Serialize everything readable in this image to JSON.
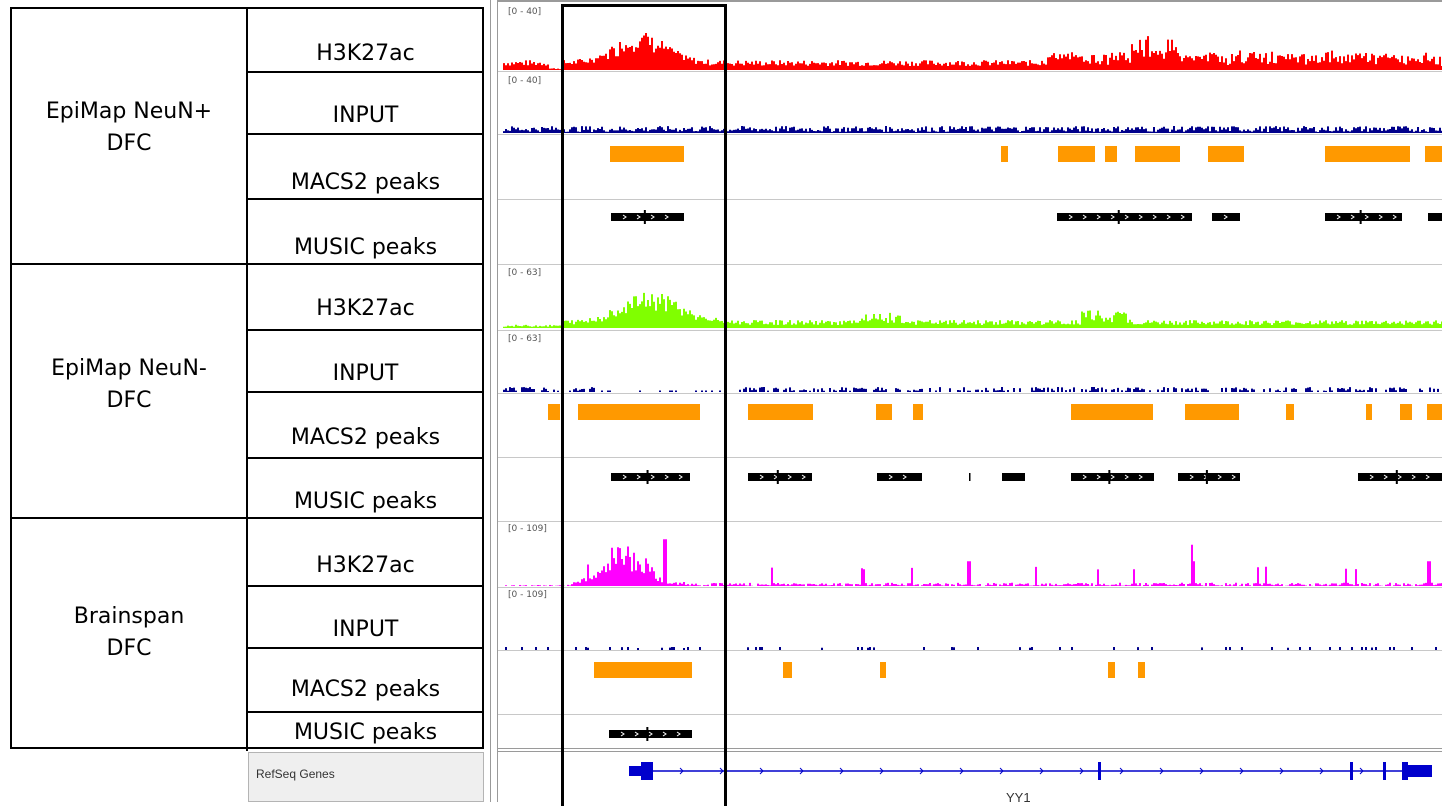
{
  "groups": [
    {
      "label_line1": "EpiMap NeuN+",
      "label_line2": "DFC",
      "tracks": [
        {
          "label": "H3K27ac",
          "type": "signal",
          "color": "#ff0000",
          "range": "[0 - 40]"
        },
        {
          "label": "INPUT",
          "type": "signal",
          "color": "#00008b",
          "range": "[0 - 40]"
        },
        {
          "label": "MACS2 peaks",
          "type": "peaks",
          "color": "#ff9900"
        },
        {
          "label": "MUSIC peaks",
          "type": "peaks",
          "color": "#000000"
        }
      ]
    },
    {
      "label_line1": "EpiMap NeuN-",
      "label_line2": "DFC",
      "tracks": [
        {
          "label": "H3K27ac",
          "type": "signal",
          "color": "#80ff00",
          "range": "[0 - 63]"
        },
        {
          "label": "INPUT",
          "type": "signal",
          "color": "#00008b",
          "range": "[0 - 63]"
        },
        {
          "label": "MACS2 peaks",
          "type": "peaks",
          "color": "#ff9900"
        },
        {
          "label": "MUSIC peaks",
          "type": "peaks",
          "color": "#000000"
        }
      ]
    },
    {
      "label_line1": "Brainspan",
      "label_line2": "DFC",
      "tracks": [
        {
          "label": "H3K27ac",
          "type": "signal",
          "color": "#ff00ff",
          "range": "[0 - 109]"
        },
        {
          "label": "INPUT",
          "type": "signal",
          "color": "#00008b",
          "range": "[0 - 109]"
        },
        {
          "label": "MACS2 peaks",
          "type": "peaks",
          "color": "#ff9900"
        },
        {
          "label": "MUSIC peaks",
          "type": "peaks",
          "color": "#000000"
        }
      ]
    }
  ],
  "refseq": {
    "label": "RefSeq Genes",
    "gene": "YY1",
    "color": "#0000cc"
  }
}
